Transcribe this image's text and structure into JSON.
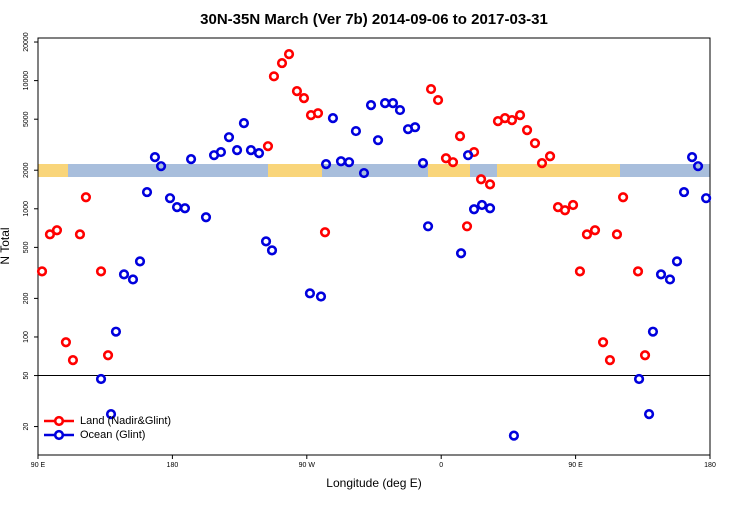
{
  "chart_data": {
    "type": "scatter",
    "title": "30N-35N March (Ver 7b)   2014-09-06 to 2017-03-31",
    "x_label": "Longitude (deg E)",
    "y_label": "N Total",
    "log_y": true,
    "legend": "bottom-left",
    "hline": 50,
    "xlim": [
      90,
      540
    ],
    "xticks": [
      {
        "value": 90,
        "label": "90 E"
      },
      180,
      {
        "value": 270,
        "label": "90 W"
      },
      {
        "value": 360,
        "label": "0"
      },
      {
        "value": 450,
        "label": "90 E"
      },
      {
        "value": 540,
        "label": "180"
      }
    ],
    "ylim": [
      12,
      21500
    ],
    "yticks": [
      20,
      50,
      100,
      200,
      500,
      1000,
      2000,
      5000,
      10000,
      20000
    ],
    "series": [
      {
        "name": "Land (Nadir&Glint)",
        "color": "#ff0000",
        "x": [
          92.7,
          98.0,
          102.7,
          108.7,
          113.4,
          118.1,
          122.1,
          132.2,
          136.9,
          244.0,
          248.0,
          253.4,
          258.1,
          263.4,
          268.1,
          272.8,
          277.5,
          282.2,
          353.2,
          357.9,
          363.2,
          367.9,
          372.6,
          377.3,
          382.0,
          386.7,
          392.7,
          398.0,
          402.7,
          407.4,
          412.8,
          417.5,
          422.8,
          427.5,
          432.9,
          438.2,
          442.9,
          448.3,
          452.9,
          457.6,
          463.0,
          468.4,
          473.0,
          477.7,
          481.8,
          491.8,
          496.5
        ],
        "values": [
          325,
          632,
          680,
          91,
          66,
          632,
          1230,
          325,
          72,
          3080,
          10800,
          13700,
          16100,
          8280,
          7300,
          5380,
          5570,
          656,
          8590,
          7050,
          2480,
          2310,
          3690,
          730,
          2770,
          1700,
          1550,
          4830,
          5100,
          4920,
          5380,
          4110,
          3250,
          2270,
          2570,
          1030,
          974,
          1070,
          325,
          632,
          680,
          91,
          66,
          632,
          1230,
          325,
          72
        ]
      },
      {
        "name": "Ocean (Glint)",
        "color": "#0000dd",
        "x": [
          132.2,
          138.9,
          142.2,
          147.6,
          153.6,
          158.3,
          163.0,
          168.3,
          172.4,
          178.4,
          183.1,
          188.4,
          192.5,
          202.5,
          207.9,
          212.5,
          217.9,
          223.3,
          227.9,
          232.6,
          238.0,
          242.7,
          246.7,
          272.1,
          279.5,
          282.9,
          287.5,
          292.9,
          298.3,
          302.9,
          308.3,
          313.0,
          317.7,
          322.4,
          327.7,
          332.4,
          337.8,
          342.5,
          347.8,
          351.2,
          373.3,
          378.0,
          382.0,
          387.3,
          392.7,
          408.7,
          492.5,
          499.2,
          501.8,
          507.2,
          513.2,
          517.9,
          522.6,
          528.0,
          532.0,
          537.4
        ],
        "values": [
          47,
          25,
          110,
          308,
          281,
          389,
          1350,
          2530,
          2150,
          1210,
          1030,
          1010,
          2440,
          859,
          2620,
          2770,
          3620,
          2870,
          4660,
          2870,
          2720,
          557,
          474,
          219,
          207,
          2230,
          5100,
          2350,
          2310,
          4040,
          1900,
          6440,
          3430,
          6670,
          6670,
          5890,
          4180,
          4330,
          2270,
          730,
          450,
          2620,
          992,
          1070,
          1010,
          17,
          47,
          25,
          110,
          308,
          281,
          389,
          1350,
          2530,
          2150,
          1210
        ]
      }
    ]
  }
}
